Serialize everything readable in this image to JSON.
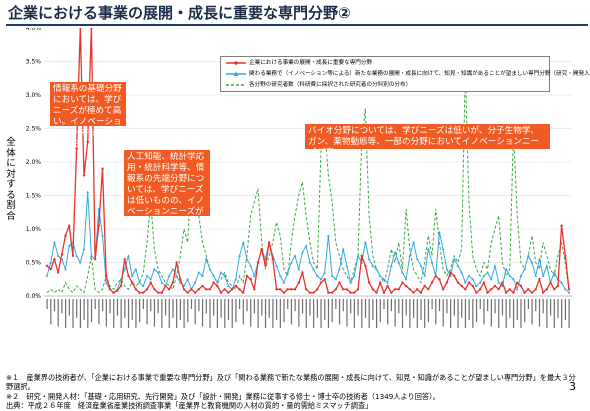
{
  "slide": {
    "title": "企業における事業の展開・成長に重要な専門分野②",
    "ylabel": "全体に対する割合",
    "page_number": "3"
  },
  "legend": {
    "item1": "企業における事業の展開・成長に重要な専門分野",
    "item2": "関わる業務で（イノベーション等による）新たな業務の展開・成長に向けて、知見・知識があることが望ましい専門分野（研究・開発人材回答）",
    "item3": "各分野の研究者数（科研費に採択された研究者の分科別の分布）"
  },
  "callouts": {
    "c1": "情報系の基礎分野においては、学びニーズが極めて高い。イノベーションニーズも一定程度存在",
    "c2": "人工知能、統計学応用・統計科学等、情報系の先端分野については、学びニーズは低いものの、イノベーションニーズが高い",
    "c3": "バイオ分野については、学びニーズは低いが、分子生物学、ガン、薬物動態等、一部の分野においてイノベーションニーズが高い"
  },
  "footnotes": {
    "n1": "※１　産業界の技術者が、「企業における事業で重要な専門分野」及び「関わる業務で新たな業務の展開・成長に向けて、知見・知識があることが望ましい専門分野」を最大３分野選択。",
    "n2": "※２　研究・開発人材：「基礎・応用研究、先行開発」及び「設計・開発」業務に従事する修士・博士卒の技術者（1349人より回答）。",
    "n3": "出典：平成２６年度　経済産業省産業技術調査事業「産業界と教育機関の人材の質的・量的需給ミスマッチ調査」"
  },
  "colors": {
    "series1": "#e8322b",
    "series2": "#36a9e1",
    "series3": "#3da843",
    "callout_bg": "#f15a22",
    "title_rule": "#1f3e6e"
  },
  "chart_data": {
    "type": "line",
    "ylim": [
      0,
      4.0
    ],
    "yticks": [
      "0.0%",
      "0.5%",
      "1.0%",
      "1.5%",
      "2.0%",
      "2.5%",
      "3.0%",
      "3.5%",
      "4.0%"
    ],
    "y_unit": "%",
    "grid": true,
    "legend_position": "top-right",
    "categories_note": "category tick labels are printed vertically and too small to be legible",
    "series": [
      {
        "name": "企業における事業の展開・成長に重要な専門分野",
        "values": [
          0.45,
          0.4,
          0.55,
          0.35,
          0.62,
          0.9,
          1.05,
          0.6,
          2.2,
          4.0,
          1.8,
          2.3,
          4.0,
          0.55,
          1.05,
          1.9,
          0.3,
          0.1,
          0.05,
          0.08,
          0.15,
          0.55,
          0.3,
          0.2,
          0.1,
          0.05,
          0.05,
          0.1,
          0.2,
          0.1,
          0.05,
          0.05,
          0.15,
          0.1,
          0.2,
          0.5,
          0.25,
          0.1,
          0.05,
          0.1,
          0.05,
          0.1,
          0.15,
          0.1,
          0.1,
          0.2,
          0.15,
          0.05,
          0.1,
          0.05,
          0.1,
          0.15,
          0.1,
          0.05,
          0.3,
          0.25,
          0.1,
          0.5,
          0.7,
          0.45,
          0.8,
          0.55,
          0.1,
          0.1,
          0.05,
          0.1,
          0.1,
          0.1,
          0.2,
          0.35,
          0.1,
          0.05,
          0.05,
          0.1,
          0.2,
          0.25,
          0.05,
          0.05,
          0.1,
          0.2,
          0.1,
          0.1,
          0.05,
          0.05,
          0.1,
          0.6,
          0.45,
          0.2,
          0.1,
          0.05,
          0.2,
          0.05,
          0.15,
          0.05,
          0.1,
          0.1,
          0.2,
          0.15,
          0.1,
          0.05,
          0.1,
          0.05,
          0.15,
          0.1,
          0.2,
          0.3,
          0.25,
          0.1,
          0.2,
          0.35,
          0.3,
          0.2,
          0.15,
          0.1,
          0.2,
          0.15,
          0.05,
          0.1,
          0.2,
          0.05,
          0.1,
          0.15,
          0.1,
          0.2,
          0.05,
          0.1,
          0.05,
          0.2,
          0.15,
          0.05,
          0.1,
          0.05,
          0.1,
          0.25,
          0.05,
          0.1,
          0.2,
          0.1,
          0.15,
          1.05,
          0.6,
          0.1
        ]
      },
      {
        "name": "関わる業務で（イノベーション等による）新たな業務の展開・成長に向けて、知見・知識があることが望ましい専門分野（研究・開発人材回答）",
        "values": [
          0.3,
          0.5,
          0.8,
          0.6,
          0.55,
          0.4,
          0.75,
          0.8,
          0.6,
          0.5,
          0.7,
          1.55,
          0.6,
          0.55,
          1.3,
          0.9,
          0.2,
          0.1,
          0.05,
          0.1,
          0.25,
          0.4,
          0.6,
          0.3,
          0.4,
          0.2,
          0.15,
          0.3,
          0.25,
          0.4,
          0.35,
          0.2,
          0.15,
          0.3,
          0.4,
          0.3,
          0.2,
          0.15,
          0.25,
          0.1,
          0.2,
          0.35,
          0.3,
          0.55,
          0.4,
          0.3,
          0.2,
          0.35,
          0.3,
          0.15,
          0.1,
          0.25,
          0.6,
          0.8,
          0.55,
          0.45,
          0.3,
          0.5,
          0.7,
          0.55,
          0.8,
          0.6,
          0.45,
          0.3,
          0.2,
          0.35,
          0.5,
          0.6,
          0.4,
          0.65,
          0.75,
          0.5,
          0.4,
          0.3,
          0.25,
          0.35,
          0.9,
          0.3,
          0.25,
          0.4,
          0.7,
          0.45,
          0.2,
          0.3,
          0.6,
          0.5,
          0.8,
          0.55,
          0.45,
          0.4,
          0.3,
          0.25,
          0.2,
          0.45,
          0.65,
          0.5,
          0.35,
          0.25,
          0.6,
          0.8,
          0.55,
          0.45,
          0.3,
          0.7,
          0.5,
          0.3,
          0.95,
          0.7,
          0.4,
          0.3,
          0.55,
          0.45,
          0.35,
          0.2,
          0.3,
          0.25,
          0.15,
          0.2,
          0.3,
          0.35,
          0.25,
          0.45,
          0.2,
          0.15,
          0.4,
          0.3,
          0.25,
          0.1,
          0.3,
          0.4,
          0.6,
          0.5,
          0.3,
          0.55,
          0.3,
          0.45,
          0.2,
          0.35,
          0.25,
          0.2,
          0.1,
          0.05
        ]
      },
      {
        "name": "各分野の研究者数（科研費に採択された研究者の分科別の分布）",
        "values": [
          0.05,
          0.1,
          0.05,
          0.1,
          0.05,
          0.2,
          0.1,
          0.05,
          0.15,
          0.1,
          0.05,
          0.3,
          0.6,
          0.1,
          0.05,
          0.1,
          0.3,
          0.15,
          0.1,
          0.2,
          0.25,
          0.15,
          0.1,
          0.2,
          0.15,
          0.2,
          0.35,
          0.8,
          1.4,
          0.7,
          0.4,
          0.3,
          0.2,
          0.15,
          0.1,
          0.3,
          0.6,
          1.0,
          0.8,
          1.9,
          1.5,
          1.2,
          0.8,
          0.6,
          0.4,
          0.3,
          0.2,
          0.25,
          0.35,
          0.2,
          0.15,
          0.1,
          0.3,
          0.2,
          0.6,
          1.2,
          1.4,
          1.6,
          0.8,
          0.4,
          0.6,
          0.8,
          1.1,
          0.9,
          0.4,
          0.3,
          0.8,
          1.2,
          1.5,
          1.7,
          1.2,
          0.8,
          0.5,
          0.4,
          2.2,
          2.5,
          1.8,
          1.4,
          0.8,
          0.6,
          0.4,
          0.3,
          0.2,
          0.4,
          0.6,
          2.3,
          2.8,
          1.2,
          0.6,
          0.4,
          0.3,
          0.2,
          0.4,
          0.7,
          0.5,
          0.8,
          0.4,
          1.3,
          0.7,
          0.4,
          0.3,
          0.2,
          0.5,
          0.9,
          0.6,
          1.3,
          0.8,
          0.4,
          0.3,
          0.4,
          0.6,
          0.5,
          0.7,
          3.35,
          1.4,
          0.6,
          0.4,
          0.3,
          0.5,
          0.4,
          0.8,
          1.0,
          1.2,
          0.5,
          0.3,
          0.4,
          2.5,
          1.2,
          0.5,
          0.4,
          0.6,
          0.9,
          0.5,
          0.4,
          0.8,
          0.6,
          0.4,
          0.3,
          0.6,
          0.8,
          0.5,
          0.05
        ]
      }
    ]
  }
}
